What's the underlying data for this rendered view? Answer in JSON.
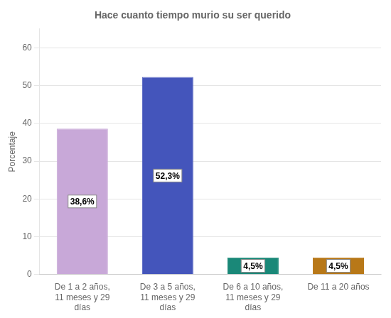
{
  "chart_data": {
    "type": "bar",
    "title": "Hace cuanto tiempo murio su ser querido",
    "ylabel": "Porcentaje",
    "categories": [
      "De 1 a 2 años,\n11 meses y 29\ndías",
      "De 3 a 5 años,\n11 meses y 29\ndías",
      "De 6 a 10 años,\n11 meses y 29\ndías",
      "De 11 a 20 años"
    ],
    "values": [
      38.6,
      52.3,
      4.5,
      4.5
    ],
    "value_labels": [
      "38,6%",
      "52,3%",
      "4,5%",
      "4,5%"
    ],
    "colors": [
      "#c8a8d8",
      "#4455bb",
      "#1a8878",
      "#b87818"
    ],
    "ylim": [
      0,
      65
    ],
    "yticks": [
      0,
      10,
      20,
      30,
      40,
      50,
      60
    ],
    "grid": true,
    "data_labels": true
  }
}
